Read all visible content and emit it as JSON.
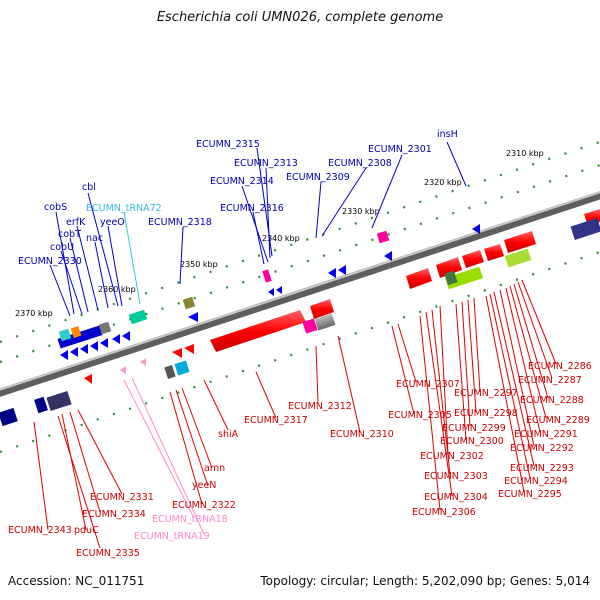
{
  "title": "Escherichia coli UMN026, complete genome",
  "footer": {
    "accession": "Accession: NC_011751",
    "summary": "Topology: circular; Length: 5,202,090 bp; Genes: 5,014"
  },
  "colors": {
    "backbone": "#888888",
    "forward_gene": "#ff0000",
    "reverse_gene": "#0000ee",
    "trna_forward": "#ff99cc",
    "trna_reverse": "#33cccc",
    "tick_dot": "#228822",
    "ruler_label": "#000000"
  },
  "ruler": [
    {
      "label": "2310 kbp",
      "kbp": 2310
    },
    {
      "label": "2320 kbp",
      "kbp": 2320
    },
    {
      "label": "2330 kbp",
      "kbp": 2330
    },
    {
      "label": "2340 kbp",
      "kbp": 2340
    },
    {
      "label": "2350 kbp",
      "kbp": 2350
    },
    {
      "label": "2360 kbp",
      "kbp": 2360
    },
    {
      "label": "2370 kbp",
      "kbp": 2370
    }
  ],
  "blue_labels": [
    "insH",
    "ECUMN_2301",
    "ECUMN_2308",
    "ECUMN_2315",
    "ECUMN_2313",
    "ECUMN_2309",
    "ECUMN_2314",
    "ECUMN_2316",
    "ECUMN_2318",
    "cbl",
    "cobS",
    "erfK",
    "yeeO",
    "cobT",
    "nac",
    "cobU",
    "ECUMN_2330"
  ],
  "cyan_labels": [
    "ECUMN_tRNA72"
  ],
  "red_labels": [
    "ECUMN_2286",
    "ECUMN_2287",
    "ECUMN_2288",
    "ECUMN_2289",
    "ECUMN_2291",
    "ECUMN_2292",
    "ECUMN_2293",
    "ECUMN_2294",
    "ECUMN_2295",
    "ECUMN_2297",
    "ECUMN_2298",
    "ECUMN_2299",
    "ECUMN_2300",
    "ECUMN_2302",
    "ECUMN_2303",
    "ECUMN_2304",
    "ECUMN_2306",
    "ECUMN_2307",
    "ECUMN_2305",
    "ECUMN_2310",
    "ECUMN_2312",
    "ECUMN_2317",
    "shiA",
    "amn",
    "yeeN",
    "ECUMN_2322",
    "ECUMN_2331",
    "ECUMN_2334",
    "pduC",
    "ECUMN_2343",
    "ECUMN_2335"
  ],
  "pink_labels": [
    "ECUMN_tRNA18",
    "ECUMN_tRNA19"
  ]
}
